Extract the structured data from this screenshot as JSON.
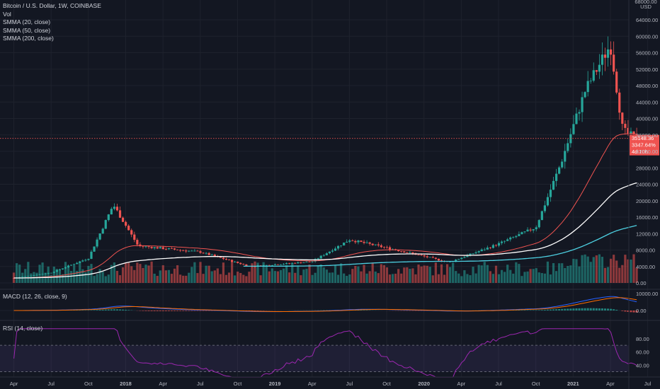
{
  "legend": {
    "symbol": "Bitcoin / U.S. Dollar, 1W, COINBASE",
    "vol": "Vol",
    "smma20": "SMMA (20, close)",
    "smma50": "SMMA (50, close)",
    "smma200": "SMMA (200, close)"
  },
  "macd_title": "MACD (12, 26, close, 9)",
  "rsi_title": "RSI (14, close)",
  "price_axis": {
    "currency": "USD",
    "top_label": "68000.00",
    "ticks": [
      "64000.00",
      "60000.00",
      "56000.00",
      "52000.00",
      "48000.00",
      "44000.00",
      "40000.00",
      "36000.00",
      "32000.00",
      "28000.00",
      "24000.00",
      "20000.00",
      "16000.00",
      "12000.00",
      "8000.00",
      "4000.00",
      "0.00"
    ]
  },
  "macd_axis": {
    "ticks": [
      "10000.00",
      "0.00"
    ]
  },
  "rsi_axis": {
    "ticks": [
      "80.00",
      "60.00",
      "40.00"
    ]
  },
  "time_axis": {
    "labels": [
      "Apr",
      "Jul",
      "Oct",
      "2018",
      "Apr",
      "Jul",
      "Oct",
      "2019",
      "Apr",
      "Jul",
      "Oct",
      "2020",
      "Apr",
      "Jul",
      "Oct",
      "2021",
      "Apr",
      "Jul"
    ]
  },
  "last_price_badge": {
    "price": "35148.36",
    "change": "3347.64%",
    "countdown": "4d 10h"
  },
  "colors": {
    "background": "#131722",
    "up": "#26a69a",
    "down": "#ef5350",
    "smma20": "#ef5350",
    "smma50": "#ffffff",
    "smma200": "#4dd0e1",
    "macd": "#2962ff",
    "signal": "#ff6d00",
    "rsi": "#9c27b0"
  },
  "chart_data": {
    "type": "candlestick",
    "symbol": "BTCUSD",
    "interval": "1W",
    "exchange": "COINBASE",
    "range": [
      "2017-04",
      "2021-06"
    ],
    "ylim": [
      0,
      68000
    ],
    "approx_close_path": [
      {
        "t": "2017-04",
        "close": 1200
      },
      {
        "t": "2017-07",
        "close": 2500
      },
      {
        "t": "2017-10",
        "close": 6000
      },
      {
        "t": "2017-12",
        "close": 19000
      },
      {
        "t": "2018-02",
        "close": 9000
      },
      {
        "t": "2018-07",
        "close": 7500
      },
      {
        "t": "2018-11",
        "close": 4000
      },
      {
        "t": "2019-04",
        "close": 5200
      },
      {
        "t": "2019-07",
        "close": 10500
      },
      {
        "t": "2019-12",
        "close": 7200
      },
      {
        "t": "2020-03",
        "close": 5000
      },
      {
        "t": "2020-07",
        "close": 9500
      },
      {
        "t": "2020-10",
        "close": 13500
      },
      {
        "t": "2020-12",
        "close": 29000
      },
      {
        "t": "2021-02",
        "close": 47000
      },
      {
        "t": "2021-04",
        "close": 58000
      },
      {
        "t": "2021-05",
        "close": 37000
      },
      {
        "t": "2021-06",
        "close": 35148.36
      }
    ],
    "indicators": {
      "smma20_end": 37000,
      "smma50_end": 24000,
      "smma200_end": 10500,
      "rsi_ylim": [
        20,
        100
      ],
      "macd_peak": 10000
    },
    "grid": true,
    "legend_position": "top-left"
  }
}
